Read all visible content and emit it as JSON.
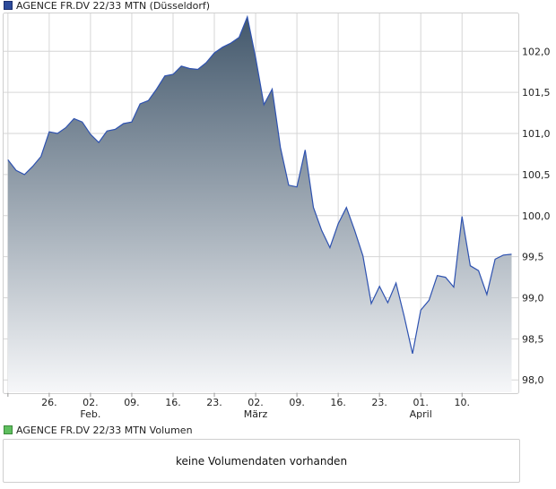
{
  "price_legend": {
    "label": "AGENCE FR.DV 22/33 MTN (Düsseldorf)",
    "color": "#2c4a9a"
  },
  "volume_legend": {
    "label": "AGENCE FR.DV 22/33 MTN Volumen",
    "color": "#5fbf5f"
  },
  "volume_panel": {
    "message": "keine Volumendaten vorhanden"
  },
  "chart_data": {
    "type": "area",
    "title": "AGENCE FR.DV 22/33 MTN (Düsseldorf)",
    "y_axis_side": "right",
    "ylim": [
      97.85,
      102.45
    ],
    "y_ticks": [
      "102,0",
      "101,5",
      "101,0",
      "100,5",
      "100,0",
      "99,5",
      "99,0",
      "98,5",
      "98,0"
    ],
    "y_tick_values": [
      102.0,
      101.5,
      101.0,
      100.5,
      100.0,
      99.5,
      99.0,
      98.5,
      98.0
    ],
    "x_ticks": [
      {
        "day": 0,
        "label": ""
      },
      {
        "day": 5,
        "label": "26."
      },
      {
        "day": 10,
        "label": "02.",
        "month": "Feb."
      },
      {
        "day": 15,
        "label": "09."
      },
      {
        "day": 20,
        "label": "16."
      },
      {
        "day": 25,
        "label": "23."
      },
      {
        "day": 30,
        "label": "02.",
        "month": "März"
      },
      {
        "day": 35,
        "label": "09."
      },
      {
        "day": 40,
        "label": "16."
      },
      {
        "day": 45,
        "label": "23."
      },
      {
        "day": 50,
        "label": "01.",
        "month": "April"
      },
      {
        "day": 55,
        "label": "10."
      }
    ],
    "x_range": [
      -0.2,
      61.6
    ],
    "colors": {
      "line": "#2e52b0",
      "fill_top": "#43586c",
      "fill_bottom": "#f6f7f9",
      "grid": "#d6d6d6"
    },
    "series": [
      {
        "x": [
          0,
          1,
          2,
          3,
          4,
          5,
          6,
          7,
          8,
          9,
          10,
          11,
          12,
          13,
          14,
          15,
          16,
          17,
          18,
          19,
          20,
          21,
          22,
          23,
          24,
          25,
          26,
          27,
          28,
          29,
          30,
          31,
          32,
          33,
          34,
          35,
          36,
          37,
          38,
          39,
          40,
          41,
          42,
          43,
          44,
          45,
          46,
          47,
          48,
          49,
          50,
          51,
          52,
          53,
          54,
          55,
          56,
          57,
          58,
          59,
          60,
          61
        ],
        "values": [
          100.68,
          100.55,
          100.5,
          100.6,
          100.72,
          101.02,
          101.0,
          101.07,
          101.18,
          101.14,
          100.99,
          100.89,
          101.03,
          101.05,
          101.12,
          101.14,
          101.36,
          101.4,
          101.54,
          101.7,
          101.72,
          101.82,
          101.79,
          101.78,
          101.86,
          101.98,
          102.05,
          102.1,
          102.17,
          102.42,
          101.92,
          101.35,
          101.54,
          100.83,
          100.37,
          100.35,
          100.8,
          100.1,
          99.82,
          99.61,
          99.9,
          100.1,
          99.82,
          99.51,
          98.93,
          99.14,
          98.94,
          99.18,
          98.77,
          98.32,
          98.85,
          98.97,
          99.27,
          99.25,
          99.13,
          99.99,
          99.39,
          99.33,
          99.04,
          99.47,
          99.52,
          99.53
        ]
      }
    ],
    "grid": true,
    "legend_position": "top-left"
  }
}
